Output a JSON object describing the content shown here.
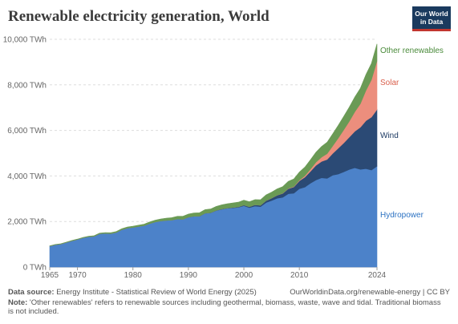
{
  "header": {
    "title": "Renewable electricity generation, World",
    "logo_line1": "Our World",
    "logo_line2": "in Data"
  },
  "footer": {
    "source_label": "Data source:",
    "source_text": "Energy Institute - Statistical Review of World Energy (2025)",
    "url_text": "OurWorldinData.org/renewable-energy | CC BY",
    "note_label": "Note:",
    "note_text": "'Other renewables' refers to renewable sources including geothermal, biomass, waste, wave and tidal. Traditional biomass is not included."
  },
  "chart_data": {
    "type": "area",
    "stacked": true,
    "title": "Renewable electricity generation, World",
    "xlim": [
      1965,
      2024
    ],
    "ylim": [
      0,
      10000
    ],
    "x_ticks": [
      1965,
      1970,
      1980,
      1990,
      2000,
      2010,
      2024
    ],
    "x_tick_labels": [
      "1965",
      "1970",
      "1980",
      "1990",
      "2000",
      "2010",
      "2024"
    ],
    "y_ticks": [
      0,
      2000,
      4000,
      6000,
      8000,
      10000
    ],
    "y_tick_labels": [
      "0 TWh",
      "2,000 TWh",
      "4,000 TWh",
      "6,000 TWh",
      "8,000 TWh",
      "10,000 TWh"
    ],
    "grid": "horizontal-dashed",
    "legend": "right-inline",
    "x": [
      1965,
      1966,
      1967,
      1968,
      1969,
      1970,
      1971,
      1972,
      1973,
      1974,
      1975,
      1976,
      1977,
      1978,
      1979,
      1980,
      1981,
      1982,
      1983,
      1984,
      1985,
      1986,
      1987,
      1988,
      1989,
      1990,
      1991,
      1992,
      1993,
      1994,
      1995,
      1996,
      1997,
      1998,
      1999,
      2000,
      2001,
      2002,
      2003,
      2004,
      2005,
      2006,
      2007,
      2008,
      2009,
      2010,
      2011,
      2012,
      2013,
      2014,
      2015,
      2016,
      2017,
      2018,
      2019,
      2020,
      2021,
      2022,
      2023,
      2024
    ],
    "series": [
      {
        "name": "Hydropower",
        "color": "#4c82c9",
        "label_color": "#2c72c2",
        "values": [
          920,
          980,
          1010,
          1080,
          1150,
          1210,
          1280,
          1330,
          1350,
          1460,
          1480,
          1470,
          1520,
          1640,
          1710,
          1740,
          1780,
          1820,
          1910,
          1980,
          2020,
          2050,
          2060,
          2110,
          2100,
          2190,
          2230,
          2230,
          2360,
          2380,
          2480,
          2540,
          2580,
          2600,
          2620,
          2690,
          2610,
          2680,
          2650,
          2830,
          2920,
          3020,
          3060,
          3220,
          3240,
          3440,
          3510,
          3680,
          3820,
          3920,
          3890,
          4030,
          4080,
          4180,
          4280,
          4360,
          4290,
          4320,
          4260,
          4430
        ]
      },
      {
        "name": "Wind",
        "color": "#2b4a75",
        "label_color": "#1d3a63",
        "values": [
          0,
          0,
          0,
          0,
          0,
          0,
          0,
          0,
          0,
          0,
          0,
          0,
          0,
          0,
          0,
          0,
          0,
          0,
          0,
          0,
          0,
          0,
          0,
          0,
          0,
          4,
          4,
          5,
          6,
          7,
          8,
          10,
          12,
          16,
          21,
          31,
          38,
          52,
          63,
          85,
          104,
          133,
          171,
          221,
          276,
          346,
          437,
          521,
          646,
          714,
          833,
          957,
          1134,
          1266,
          1420,
          1597,
          1849,
          2107,
          2325,
          2490
        ]
      },
      {
        "name": "Solar",
        "color": "#ec8e7d",
        "label_color": "#d95f4b",
        "values": [
          0,
          0,
          0,
          0,
          0,
          0,
          0,
          0,
          0,
          0,
          0,
          0,
          0,
          0,
          0,
          0,
          0,
          0,
          0,
          0,
          0,
          0,
          0,
          0,
          0,
          0,
          0,
          0,
          0,
          0,
          0,
          0,
          0,
          0,
          0,
          1,
          1,
          1,
          2,
          3,
          4,
          6,
          8,
          12,
          20,
          32,
          62,
          97,
          135,
          190,
          256,
          328,
          444,
          577,
          697,
          857,
          1033,
          1323,
          1639,
          2130
        ]
      },
      {
        "name": "Other renewables",
        "color": "#6a9a55",
        "label_color": "#4a8a3a",
        "values": [
          10,
          12,
          14,
          16,
          18,
          20,
          22,
          25,
          28,
          30,
          33,
          36,
          40,
          44,
          48,
          52,
          58,
          64,
          70,
          78,
          88,
          98,
          108,
          118,
          128,
          132,
          140,
          148,
          156,
          164,
          174,
          182,
          190,
          198,
          206,
          214,
          222,
          230,
          240,
          250,
          262,
          275,
          290,
          310,
          330,
          350,
          380,
          410,
          440,
          470,
          500,
          530,
          560,
          590,
          620,
          650,
          680,
          700,
          720,
          750
        ]
      }
    ]
  }
}
